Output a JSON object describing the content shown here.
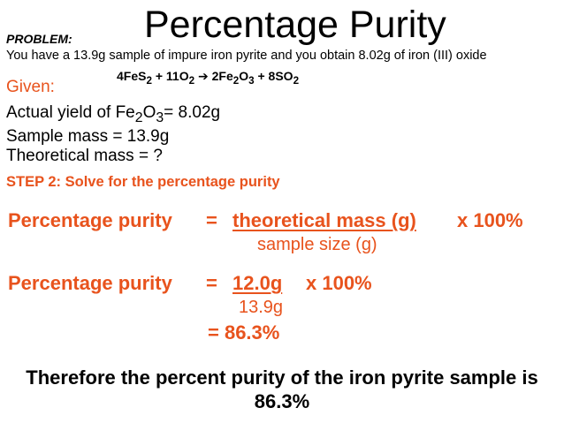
{
  "title": "Percentage Purity",
  "problem": {
    "label": "PROBLEM:",
    "text": "You have a 13.9g sample of impure iron pyrite and you obtain 8.02g of iron (III) oxide"
  },
  "equation": {
    "reactant1_coef": "4FeS",
    "reactant1_sub": "2",
    "plus1": " + 11O",
    "reactant2_sub": "2",
    "arrow": " ➔ ",
    "product1": "2Fe",
    "product1_sub1": "2",
    "product1_o": "O",
    "product1_sub2": "3",
    "plus2": " + 8SO",
    "product2_sub": "2"
  },
  "given": {
    "label": "Given:",
    "actual_yield_prefix": "Actual yield of Fe",
    "actual_yield_sub1": "2",
    "actual_yield_o": "O",
    "actual_yield_sub2": "3",
    "actual_yield_value": "= 8.02g",
    "sample_mass": "Sample mass = 13.9g",
    "theoretical_mass": "Theoretical mass = ?"
  },
  "step_heading": "STEP 2: Solve for the percentage purity",
  "formula": {
    "label": "Percentage purity",
    "equals": "=",
    "numerator": "theoretical mass (g)",
    "multiplier": "x 100%",
    "denominator": "sample size (g)"
  },
  "calculation": {
    "label": "Percentage purity",
    "equals": "=",
    "numerator": "12.0g",
    "multiplier": "x 100%",
    "denominator": "13.9g",
    "result": "= 86.3%"
  },
  "conclusion": "Therefore the percent purity of the iron pyrite sample is 86.3%",
  "colors": {
    "accent": "#e8531d",
    "text": "#000000",
    "background": "#ffffff"
  }
}
